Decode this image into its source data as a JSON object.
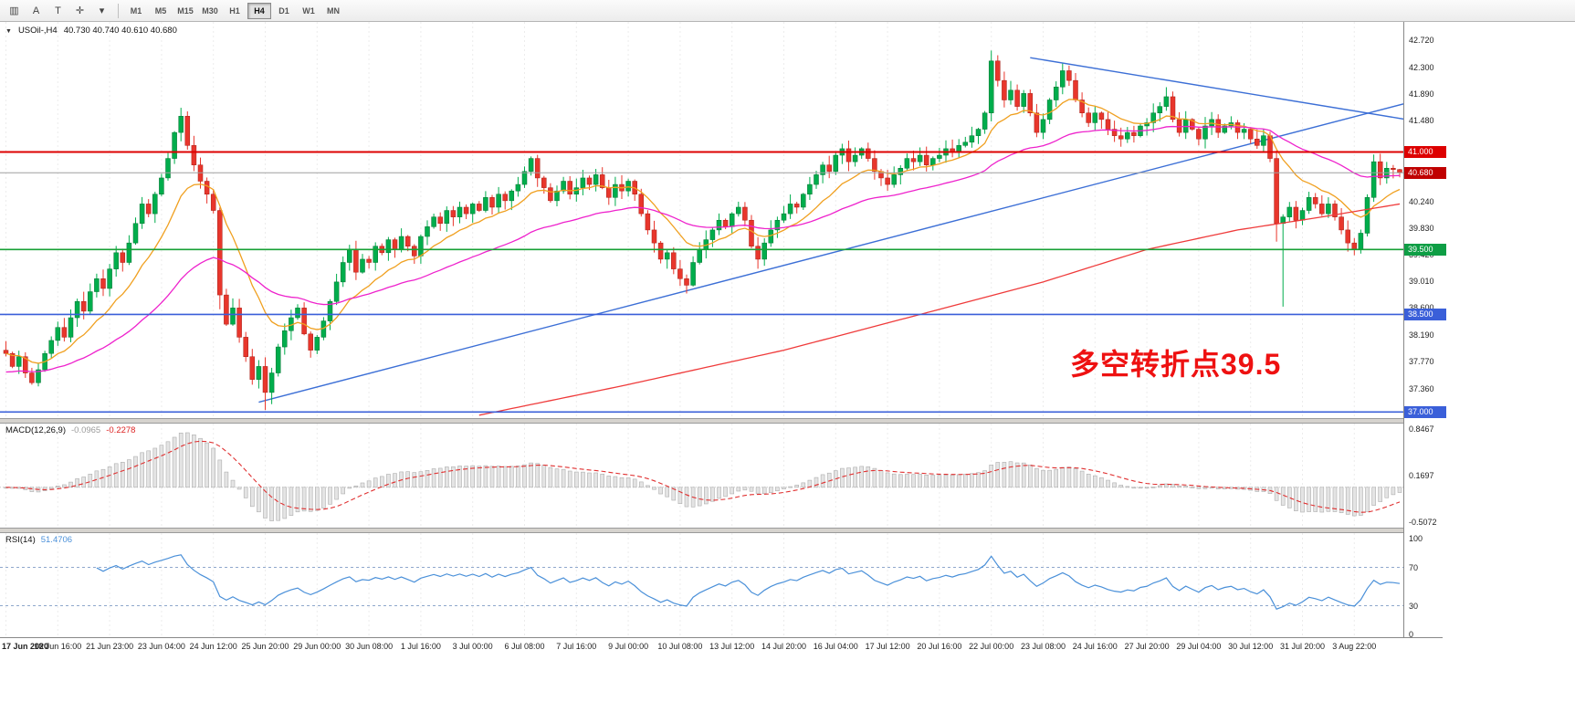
{
  "toolbar": {
    "icons": [
      {
        "name": "chart-bars-icon",
        "glyph": "▥"
      },
      {
        "name": "cursor-tool-icon",
        "glyph": "A"
      },
      {
        "name": "text-tool-icon",
        "glyph": "T"
      },
      {
        "name": "crosshair-tool-icon",
        "glyph": "✛"
      },
      {
        "name": "dropdown-arrow-icon",
        "glyph": "▾"
      }
    ],
    "timeframes": [
      "M1",
      "M5",
      "M15",
      "M30",
      "H1",
      "H4",
      "D1",
      "W1",
      "MN"
    ],
    "active_timeframe": "H4"
  },
  "chart": {
    "dropdown_glyph": "▼",
    "symbol_label": "USOil-,H4",
    "quote_label": "40.730 40.740 40.610 40.680",
    "annotation_text": "多空转折点39.5"
  },
  "chart_data": {
    "type": "candlestick",
    "symbol": "USOil-",
    "timeframe": "H4",
    "last_quote": {
      "open": 40.73,
      "high": 40.74,
      "low": 40.61,
      "close": 40.68
    },
    "x_labels": [
      "17 Jun 2020",
      "18 Jun 16:00",
      "21 Jun 23:00",
      "23 Jun 04:00",
      "24 Jun 12:00",
      "25 Jun 20:00",
      "29 Jun 00:00",
      "30 Jun 08:00",
      "1 Jul 16:00",
      "3 Jul 00:00",
      "6 Jul 08:00",
      "7 Jul 16:00",
      "9 Jul 00:00",
      "10 Jul 08:00",
      "13 Jul 12:00",
      "14 Jul 20:00",
      "16 Jul 04:00",
      "17 Jul 12:00",
      "20 Jul 16:00",
      "22 Jul 00:00",
      "23 Jul 08:00",
      "24 Jul 16:00",
      "27 Jul 20:00",
      "29 Jul 04:00",
      "30 Jul 12:00",
      "31 Jul 20:00",
      "3 Aug 22:00"
    ],
    "bars_per_label": 8,
    "first_open": 37.95,
    "closes": [
      37.9,
      37.7,
      37.85,
      37.6,
      37.45,
      37.65,
      37.9,
      38.1,
      38.3,
      38.15,
      38.45,
      38.7,
      38.55,
      38.85,
      39.05,
      38.9,
      39.2,
      39.45,
      39.3,
      39.6,
      39.9,
      40.2,
      40.05,
      40.35,
      40.6,
      40.9,
      41.3,
      41.55,
      41.1,
      40.8,
      40.55,
      40.35,
      40.1,
      38.8,
      38.35,
      38.6,
      38.15,
      37.85,
      37.5,
      37.7,
      37.3,
      37.6,
      38.0,
      38.25,
      38.45,
      38.6,
      38.2,
      37.95,
      38.15,
      38.4,
      38.7,
      39.0,
      39.3,
      39.5,
      39.15,
      39.35,
      39.3,
      39.55,
      39.45,
      39.65,
      39.5,
      39.7,
      39.55,
      39.4,
      39.7,
      39.85,
      40.0,
      39.9,
      40.1,
      40.0,
      40.15,
      40.05,
      40.2,
      40.1,
      40.3,
      40.15,
      40.35,
      40.25,
      40.4,
      40.5,
      40.7,
      40.9,
      40.6,
      40.45,
      40.25,
      40.4,
      40.55,
      40.35,
      40.45,
      40.6,
      40.5,
      40.65,
      40.45,
      40.3,
      40.5,
      40.4,
      40.55,
      40.35,
      40.05,
      39.8,
      39.6,
      39.35,
      39.45,
      39.2,
      39.05,
      38.95,
      39.3,
      39.5,
      39.65,
      39.8,
      39.95,
      39.85,
      40.05,
      40.15,
      39.95,
      39.55,
      39.35,
      39.6,
      39.8,
      39.95,
      40.05,
      40.2,
      40.15,
      40.35,
      40.5,
      40.65,
      40.8,
      40.7,
      40.95,
      41.05,
      40.85,
      40.95,
      41.05,
      40.9,
      40.7,
      40.6,
      40.5,
      40.65,
      40.75,
      40.9,
      40.85,
      40.95,
      40.8,
      40.9,
      40.95,
      41.05,
      41.0,
      41.1,
      41.15,
      41.25,
      41.35,
      41.6,
      42.4,
      42.1,
      41.8,
      41.95,
      41.7,
      41.9,
      41.6,
      41.3,
      41.5,
      41.8,
      42.0,
      42.25,
      42.1,
      41.8,
      41.6,
      41.45,
      41.6,
      41.5,
      41.35,
      41.25,
      41.2,
      41.3,
      41.25,
      41.4,
      41.45,
      41.6,
      41.7,
      41.85,
      41.5,
      41.3,
      41.5,
      41.35,
      41.2,
      41.4,
      41.5,
      41.3,
      41.4,
      41.45,
      41.3,
      41.35,
      41.2,
      41.1,
      41.25,
      40.9,
      39.9,
      40.0,
      40.15,
      39.95,
      40.1,
      40.3,
      40.2,
      40.05,
      40.2,
      40.0,
      39.8,
      39.6,
      39.5,
      39.75,
      40.3,
      40.85,
      40.6,
      40.75,
      40.73,
      40.68
    ],
    "overrides": {
      "27": {
        "high": 41.68
      },
      "33": {
        "low": 38.58
      },
      "40": {
        "low": 37.03
      },
      "41": {
        "low": 37.12
      },
      "152": {
        "high": 42.56
      },
      "163": {
        "high": 42.36
      },
      "196": {
        "low": 39.62
      },
      "197": {
        "low": 38.62
      },
      "211": {
        "high": 40.96
      },
      "215": {
        "open": 40.73,
        "high": 40.74,
        "low": 40.61,
        "close": 40.68
      }
    },
    "up_color": "#00ad4c",
    "down_color": "#e8362c",
    "y_axis": {
      "price_min": 36.95,
      "price_max": 42.94,
      "ticks": [
        {
          "label": "42.720",
          "price": 42.72
        },
        {
          "label": "42.300",
          "price": 42.3
        },
        {
          "label": "41.890",
          "price": 41.89
        },
        {
          "label": "41.480",
          "price": 41.48
        },
        {
          "label": "40.240",
          "price": 40.24
        },
        {
          "label": "39.830",
          "price": 39.83
        },
        {
          "label": "39.420",
          "price": 39.42
        },
        {
          "label": "39.010",
          "price": 39.01
        },
        {
          "label": "38.600",
          "price": 38.6
        },
        {
          "label": "38.190",
          "price": 38.19
        },
        {
          "label": "37.770",
          "price": 37.77
        },
        {
          "label": "37.360",
          "price": 37.36
        },
        {
          "label": "36.950",
          "price": 36.95
        }
      ]
    },
    "levels": [
      {
        "label": "41.000",
        "price": 41.0,
        "color": "#dd0000",
        "badge_color": "#dd0000",
        "width": 2
      },
      {
        "label": "39.500",
        "price": 39.5,
        "color": "#17a035",
        "badge_color": "#0e9e45",
        "width": 1.6
      },
      {
        "label": "38.500",
        "price": 38.5,
        "color": "#3a5fd9",
        "badge_color": "#3a5fd9",
        "width": 1.6
      },
      {
        "label": "37.000",
        "price": 37.0,
        "color": "#3a5fd9",
        "badge_color": "#3a5fd9",
        "width": 1.6
      }
    ],
    "current_price": {
      "label": "40.680",
      "price": 40.68,
      "badge_color": "#c00000",
      "line_color": "#9f9f9f"
    },
    "moving_averages": [
      {
        "name": "ma-fast",
        "type": "ema",
        "period": 12,
        "seed": 37.9,
        "color": "#f0a020"
      },
      {
        "name": "ma-medium",
        "type": "ema",
        "period": 40,
        "seed": 37.6,
        "color": "#ee22cc"
      },
      {
        "name": "ma-slow",
        "type": "points",
        "color": "#ef3b3b",
        "points": [
          [
            73,
            36.95
          ],
          [
            95,
            37.4
          ],
          [
            120,
            37.95
          ],
          [
            141,
            38.5
          ],
          [
            160,
            39.0
          ],
          [
            176,
            39.5
          ],
          [
            190,
            39.8
          ],
          [
            203,
            40.0
          ],
          [
            215,
            40.2
          ]
        ]
      }
    ],
    "trendlines": [
      {
        "name": "rising-trendline",
        "color": "#3c6fd6",
        "from": [
          39,
          37.15
        ],
        "to": [
          216,
          41.75
        ]
      },
      {
        "name": "falling-trendline",
        "color": "#3c6fd6",
        "from": [
          158,
          42.45
        ],
        "to": [
          216,
          41.5
        ]
      }
    ],
    "macd": {
      "label": "MACD(12,26,9)",
      "value_main": "-0.0965",
      "value_signal": "-0.2278",
      "fast": 12,
      "slow": 26,
      "signal": 9,
      "hist_fill": "#e4e4e4",
      "hist_stroke": "#adadad",
      "signal_color": "#e03030",
      "scale": [
        {
          "label": "0.8467",
          "value": 0.8467
        },
        {
          "label": "0.1697",
          "value": 0.1697
        },
        {
          "label": "-0.5072",
          "value": -0.5072
        }
      ]
    },
    "rsi": {
      "label": "RSI(14)",
      "value": "51.4706",
      "period": 14,
      "line_color": "#4a90d9",
      "level_color": "#8fa8cc",
      "levels": [
        70,
        30
      ],
      "scale": [
        {
          "label": "100",
          "value": 100
        },
        {
          "label": "70",
          "value": 70
        },
        {
          "label": "30",
          "value": 30
        },
        {
          "label": "0",
          "value": 0
        }
      ]
    }
  }
}
